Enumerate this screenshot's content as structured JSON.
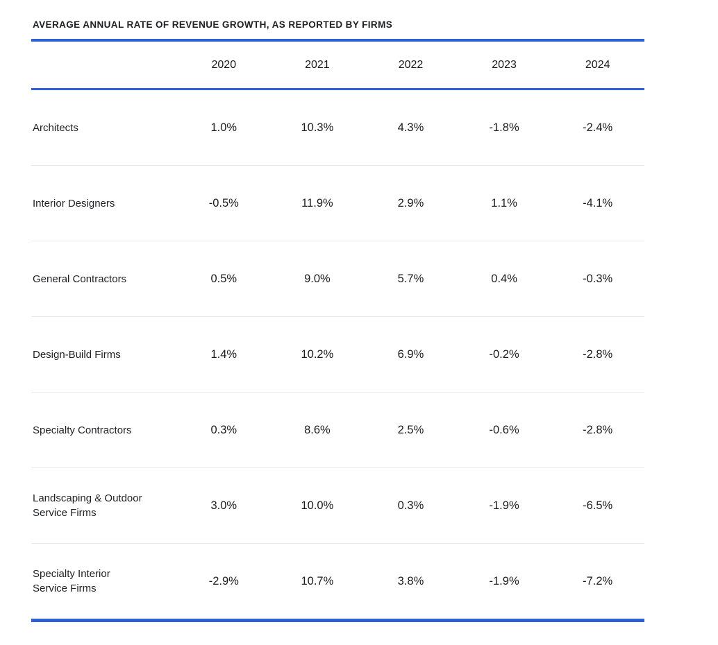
{
  "accent_color": "#2e5fd6",
  "divider_color": "#e8e8e8",
  "title": "AVERAGE ANNUAL RATE OF REVENUE GROWTH, AS REPORTED BY FIRMS",
  "chart_data": {
    "type": "table",
    "title": "AVERAGE ANNUAL RATE OF REVENUE GROWTH, AS REPORTED BY FIRMS",
    "columns": [
      "2020",
      "2021",
      "2022",
      "2023",
      "2024"
    ],
    "rows": [
      {
        "label": "Architects",
        "values": [
          "1.0%",
          "10.3%",
          "4.3%",
          "-1.8%",
          "-2.4%"
        ]
      },
      {
        "label": "Interior Designers",
        "values": [
          "-0.5%",
          "11.9%",
          "2.9%",
          "1.1%",
          "-4.1%"
        ]
      },
      {
        "label": "General Contractors",
        "values": [
          "0.5%",
          "9.0%",
          "5.7%",
          "0.4%",
          "-0.3%"
        ]
      },
      {
        "label": "Design-Build Firms",
        "values": [
          "1.4%",
          "10.2%",
          "6.9%",
          "-0.2%",
          "-2.8%"
        ]
      },
      {
        "label": "Specialty Contractors",
        "values": [
          "0.3%",
          "8.6%",
          "2.5%",
          "-0.6%",
          "-2.8%"
        ]
      },
      {
        "label": "Landscaping & Outdoor\nService Firms",
        "values": [
          "3.0%",
          "10.0%",
          "0.3%",
          "-1.9%",
          "-6.5%"
        ]
      },
      {
        "label": "Specialty Interior\nService Firms",
        "values": [
          "-2.9%",
          "10.7%",
          "3.8%",
          "-1.9%",
          "-7.2%"
        ]
      }
    ],
    "layout": {
      "grid": "horizontal-dividers-only",
      "legend": "none",
      "value_unit": "percent"
    }
  }
}
